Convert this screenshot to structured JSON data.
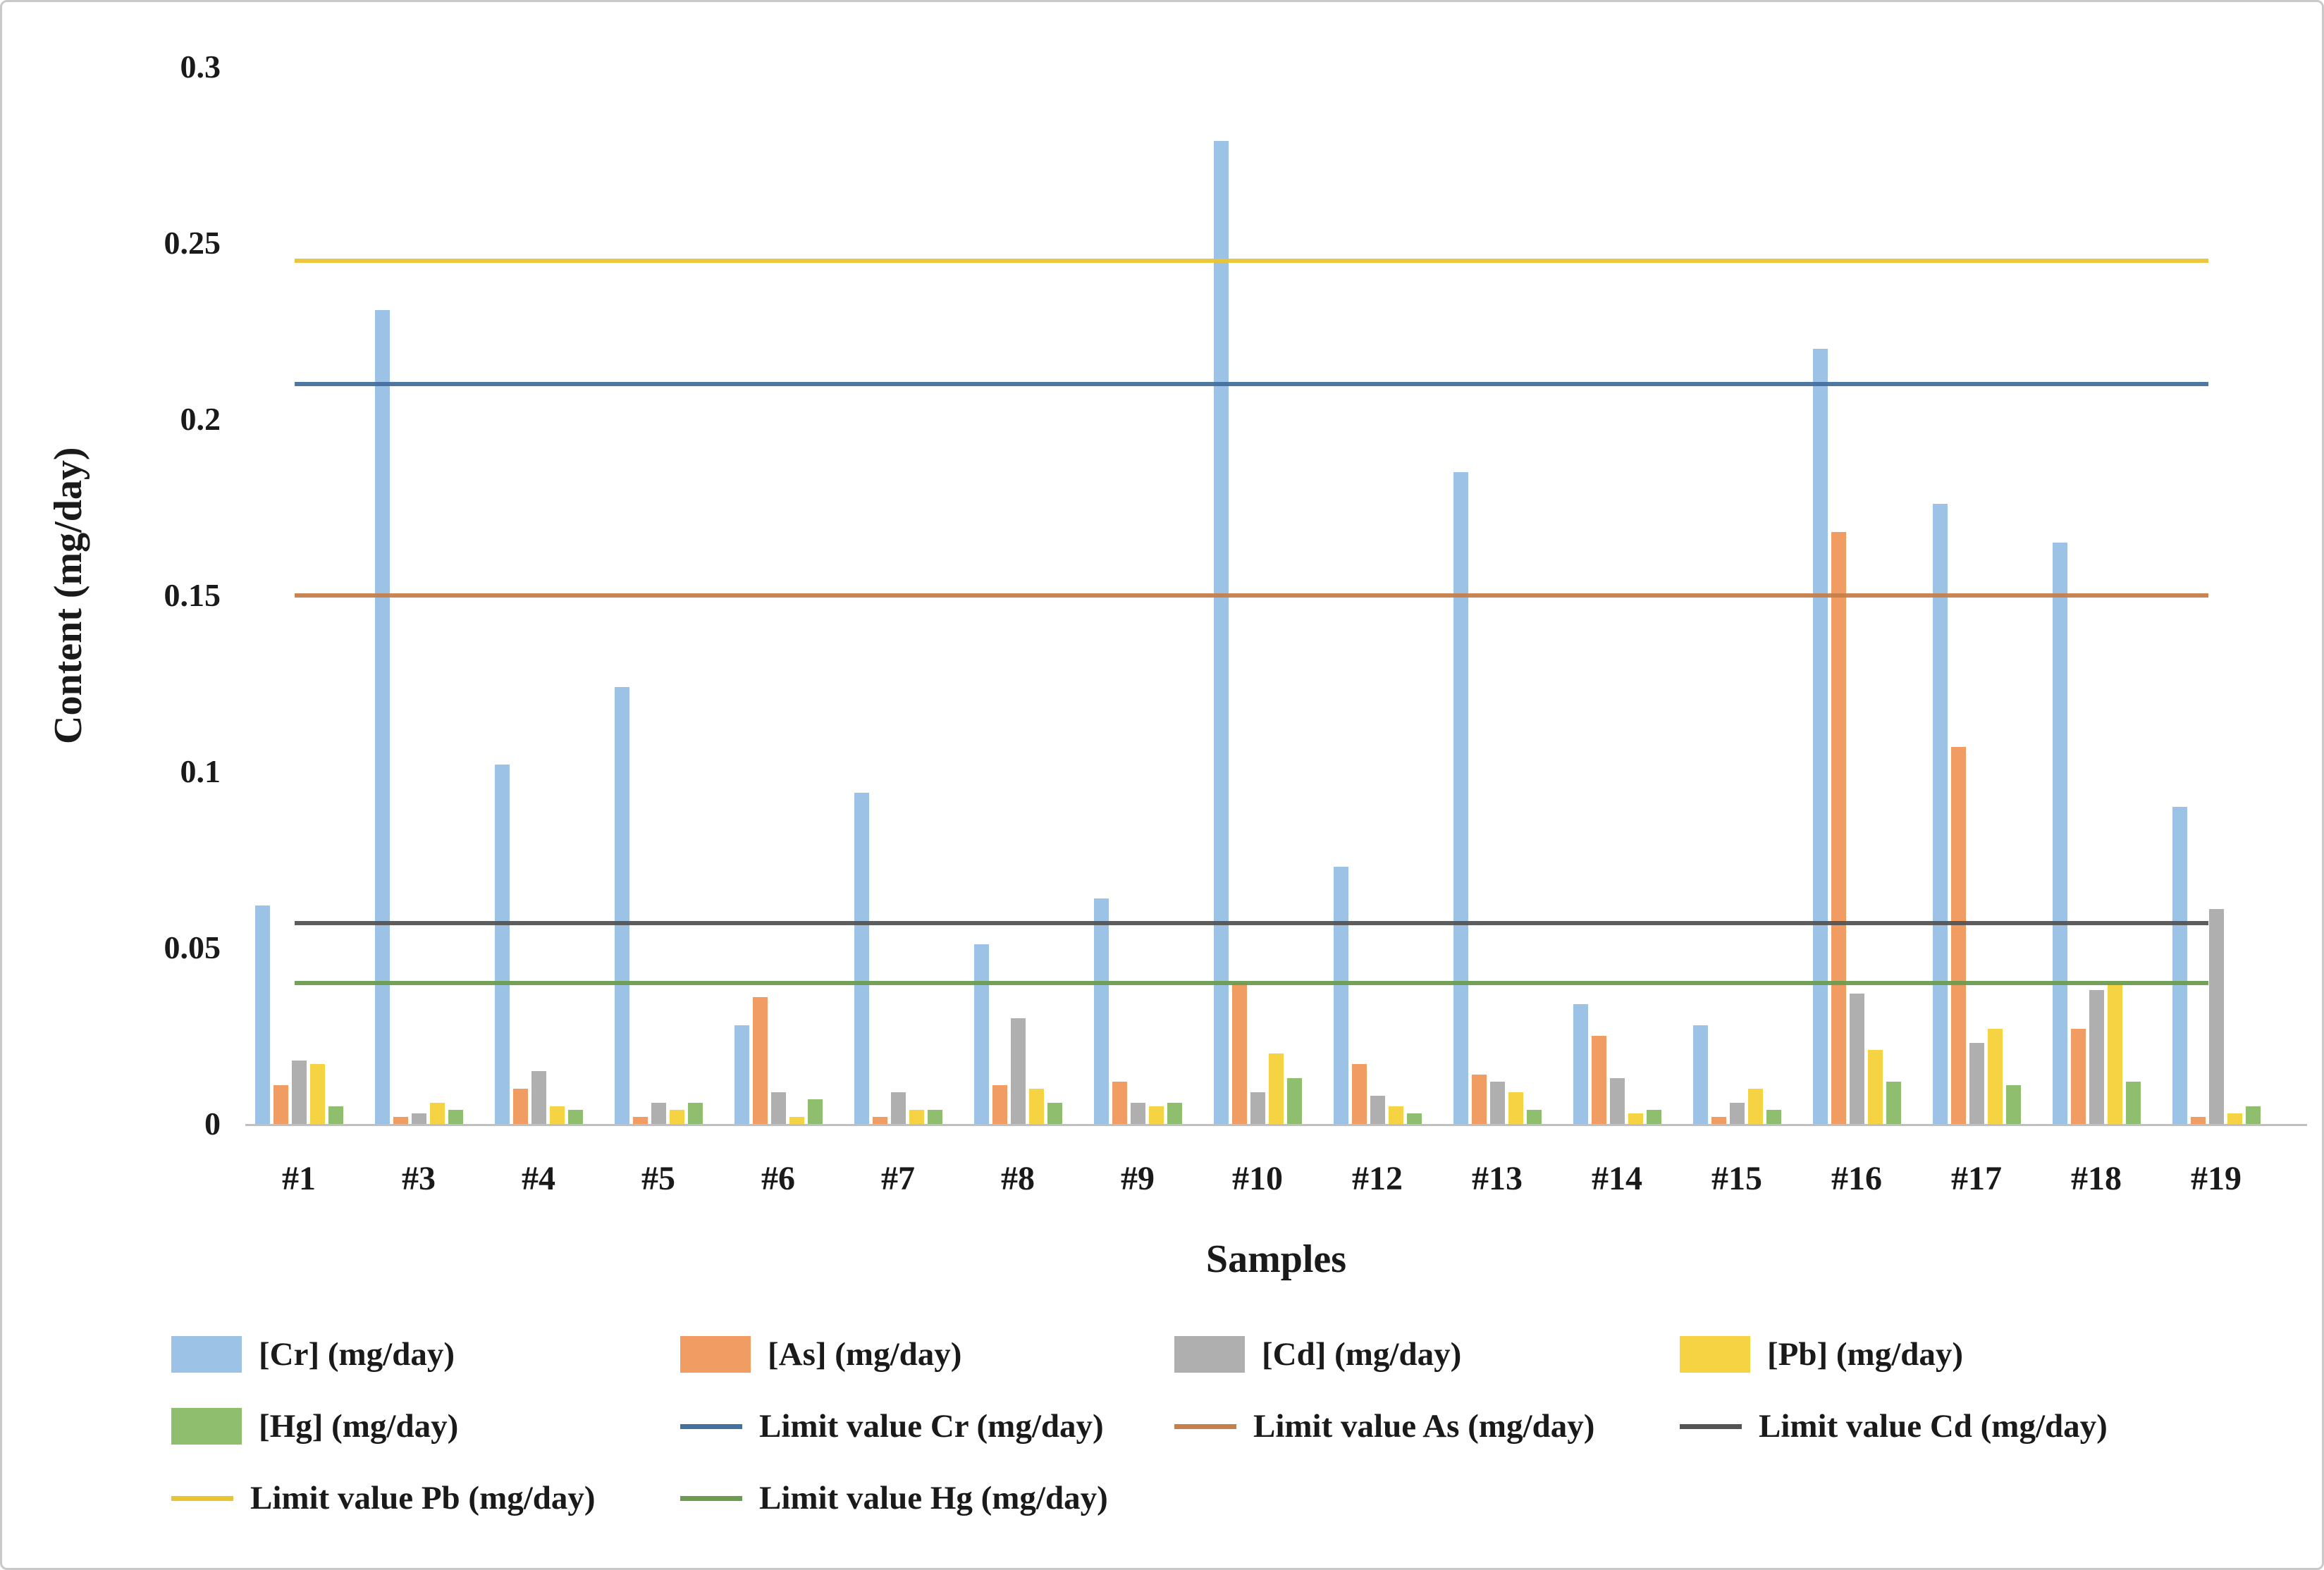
{
  "figure": {
    "background": "#ffffff",
    "border_color": "#c9c9c9",
    "axis_line_color": "#c0c0c0"
  },
  "chart_data": {
    "type": "bar",
    "title": "",
    "xlabel": "Samples",
    "ylabel": "Content (mg/day)",
    "ylim": [
      0,
      0.3
    ],
    "grid": false,
    "legend_position": "bottom",
    "yticks": [
      {
        "value": 0,
        "label": "0"
      },
      {
        "value": 0.05,
        "label": "0.05"
      },
      {
        "value": 0.1,
        "label": "0.1"
      },
      {
        "value": 0.15,
        "label": "0.15"
      },
      {
        "value": 0.2,
        "label": "0.2"
      },
      {
        "value": 0.25,
        "label": "0.25"
      },
      {
        "value": 0.3,
        "label": "0.3"
      }
    ],
    "categories": [
      "#1",
      "#3",
      "#4",
      "#5",
      "#6",
      "#7",
      "#8",
      "#9",
      "#10",
      "#12",
      "#13",
      "#14",
      "#15",
      "#16",
      "#17",
      "#18",
      "#19"
    ],
    "series": [
      {
        "key": "cr",
        "name": "[Cr] (mg/day)",
        "color": "#9CC2E5",
        "values": [
          0.062,
          0.231,
          0.102,
          0.124,
          0.028,
          0.094,
          0.051,
          0.064,
          0.279,
          0.073,
          0.185,
          0.034,
          0.028,
          0.22,
          0.176,
          0.165,
          0.09
        ]
      },
      {
        "key": "as",
        "name": "[As] (mg/day)",
        "color": "#F09C62",
        "values": [
          0.011,
          0.002,
          0.01,
          0.002,
          0.036,
          0.002,
          0.011,
          0.012,
          0.04,
          0.017,
          0.014,
          0.025,
          0.002,
          0.168,
          0.107,
          0.027,
          0.002
        ]
      },
      {
        "key": "cd",
        "name": "[Cd] (mg/day)",
        "color": "#AFAFAF",
        "values": [
          0.018,
          0.003,
          0.015,
          0.006,
          0.009,
          0.009,
          0.03,
          0.006,
          0.009,
          0.008,
          0.012,
          0.013,
          0.006,
          0.037,
          0.023,
          0.038,
          0.061
        ]
      },
      {
        "key": "pb",
        "name": "[Pb] (mg/day)",
        "color": "#F5D342",
        "values": [
          0.017,
          0.006,
          0.005,
          0.004,
          0.002,
          0.004,
          0.01,
          0.005,
          0.02,
          0.005,
          0.009,
          0.003,
          0.01,
          0.021,
          0.027,
          0.04,
          0.003
        ]
      },
      {
        "key": "hg",
        "name": "[Hg] (mg/day)",
        "color": "#8FBE6E",
        "values": [
          0.005,
          0.004,
          0.004,
          0.006,
          0.007,
          0.004,
          0.006,
          0.006,
          0.013,
          0.003,
          0.004,
          0.004,
          0.004,
          0.012,
          0.011,
          0.012,
          0.005
        ]
      }
    ],
    "limit_lines": [
      {
        "key": "limit-cr",
        "name": "Limit value Cr (mg/day)",
        "color": "#44709D",
        "value": 0.21
      },
      {
        "key": "limit-as",
        "name": "Limit value As (mg/day)",
        "color": "#C67F4B",
        "value": 0.15
      },
      {
        "key": "limit-cd",
        "name": "Limit value Cd (mg/day)",
        "color": "#545454",
        "value": 0.057
      },
      {
        "key": "limit-pb",
        "name": "Limit value Pb (mg/day)",
        "color": "#E9C431",
        "value": 0.245
      },
      {
        "key": "limit-hg",
        "name": "Limit value Hg (mg/day)",
        "color": "#6D9C50",
        "value": 0.04
      }
    ],
    "legend_items": [
      {
        "label": "[Cr] (mg/day)",
        "swatch": "bar",
        "color": "#9CC2E5"
      },
      {
        "label": "[As] (mg/day)",
        "swatch": "bar",
        "color": "#F09C62"
      },
      {
        "label": "[Cd] (mg/day)",
        "swatch": "bar",
        "color": "#AFAFAF"
      },
      {
        "label": "[Pb] (mg/day)",
        "swatch": "bar",
        "color": "#F5D342"
      },
      {
        "label": "[Hg] (mg/day)",
        "swatch": "bar",
        "color": "#8FBE6E"
      },
      {
        "label": "Limit value Cr (mg/day)",
        "swatch": "line",
        "color": "#44709D"
      },
      {
        "label": "Limit value As (mg/day)",
        "swatch": "line",
        "color": "#C67F4B"
      },
      {
        "label": "Limit value Cd (mg/day)",
        "swatch": "line",
        "color": "#545454"
      },
      {
        "label": "Limit value Pb (mg/day)",
        "swatch": "line",
        "color": "#E9C431"
      },
      {
        "label": "Limit value Hg (mg/day)",
        "swatch": "line",
        "color": "#6D9C50"
      }
    ]
  }
}
